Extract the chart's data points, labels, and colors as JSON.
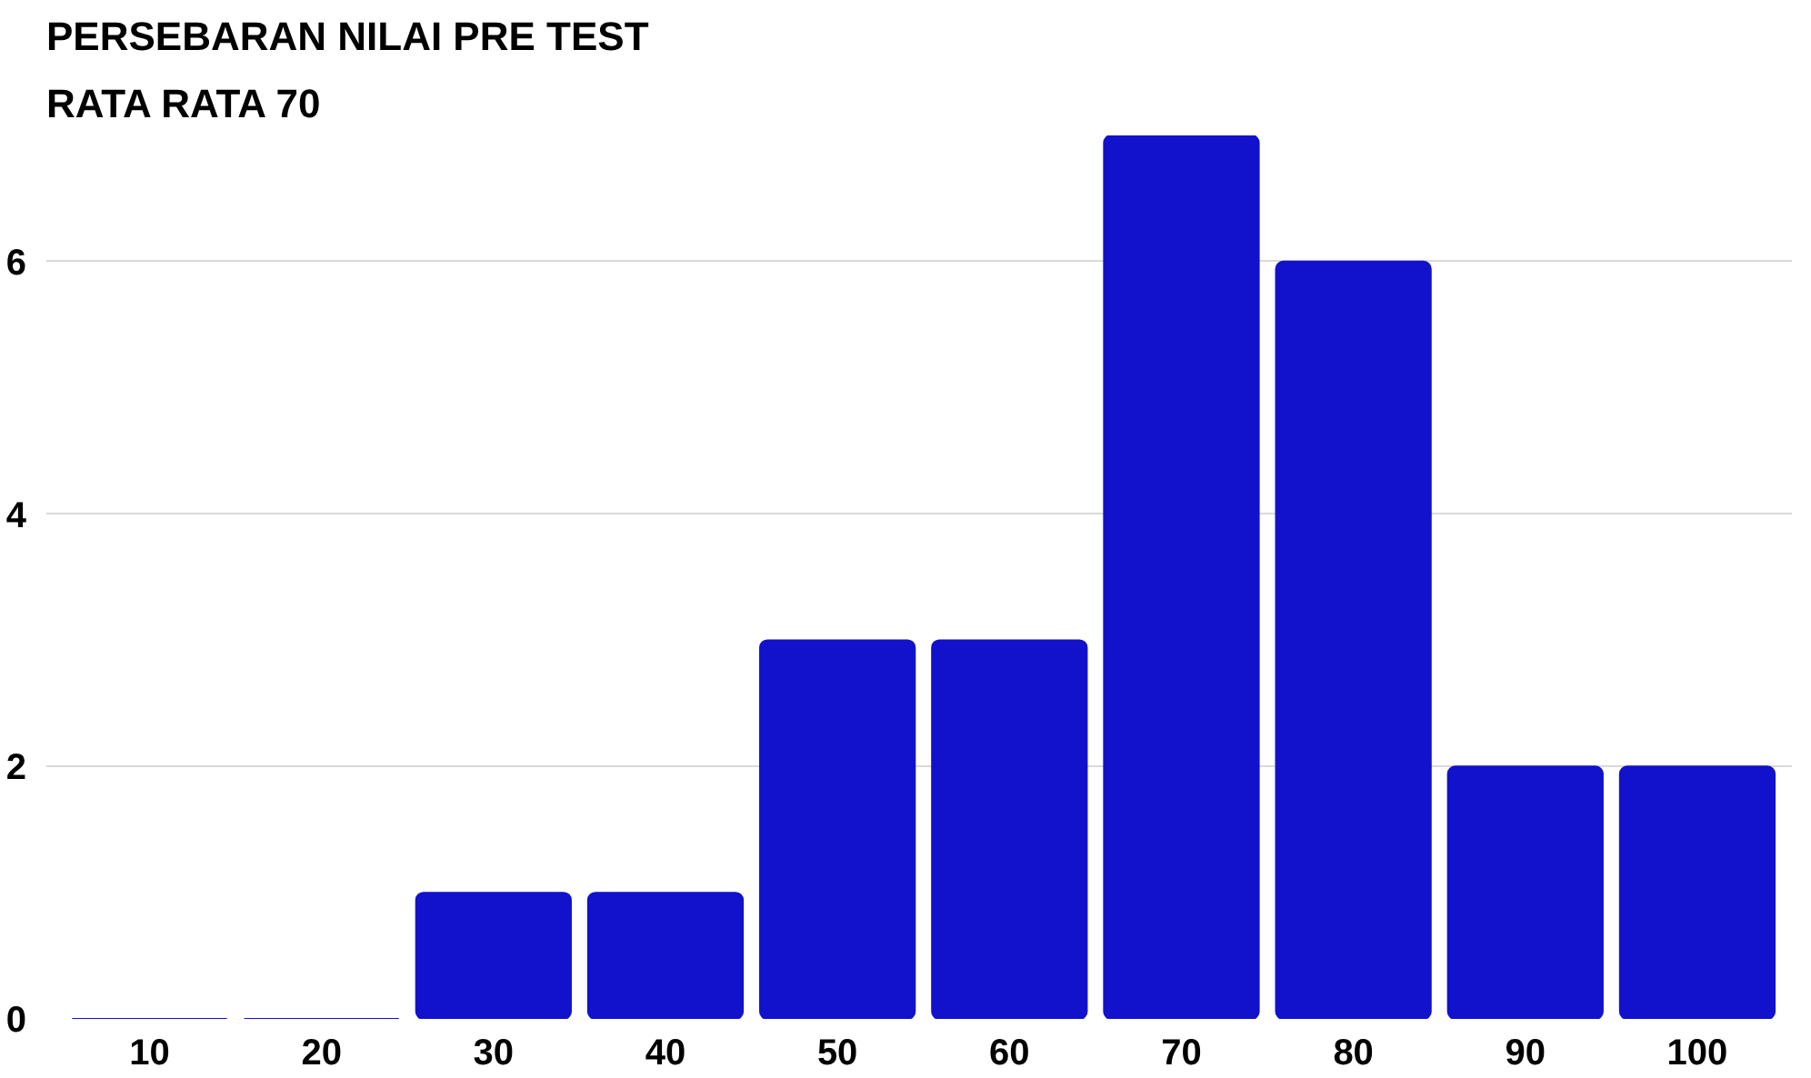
{
  "chart_data": {
    "type": "bar",
    "title": "PERSEBARAN NILAI PRE TEST",
    "subtitle": " RATA RATA 70",
    "categories": [
      "10",
      "20",
      "30",
      "40",
      "50",
      "60",
      "70",
      "80",
      "90",
      "100"
    ],
    "values": [
      0,
      0,
      1,
      1,
      3,
      3,
      7,
      6,
      2,
      2
    ],
    "color": "#1212cc",
    "ylim": [
      0,
      7
    ],
    "yticks": [
      0,
      2,
      4,
      6
    ],
    "grid": "y"
  }
}
